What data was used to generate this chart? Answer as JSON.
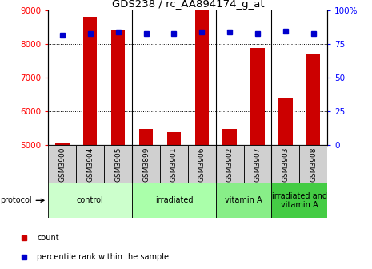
{
  "title": "GDS238 / rc_AA894174_g_at",
  "categories": [
    "GSM3900",
    "GSM3904",
    "GSM3905",
    "GSM3899",
    "GSM3901",
    "GSM3906",
    "GSM3902",
    "GSM3907",
    "GSM3903",
    "GSM3908"
  ],
  "counts": [
    5070,
    8820,
    8430,
    5480,
    5380,
    9000,
    5480,
    7900,
    6420,
    7720
  ],
  "percentiles": [
    82,
    83,
    84,
    83,
    83,
    84,
    84,
    83,
    85,
    83
  ],
  "groups": [
    {
      "label": "control",
      "start": 0,
      "end": 3,
      "color": "#ccffcc"
    },
    {
      "label": "irradiated",
      "start": 3,
      "end": 6,
      "color": "#aaffaa"
    },
    {
      "label": "vitamin A",
      "start": 6,
      "end": 8,
      "color": "#88ee88"
    },
    {
      "label": "irradiated and\nvitamin A",
      "start": 8,
      "end": 10,
      "color": "#44cc44"
    }
  ],
  "ylim_left": [
    5000,
    9000
  ],
  "ylim_right": [
    0,
    100
  ],
  "yticks_left": [
    5000,
    6000,
    7000,
    8000,
    9000
  ],
  "yticks_right": [
    0,
    25,
    50,
    75,
    100
  ],
  "bar_color": "#cc0000",
  "dot_color": "#0000cc",
  "bar_width": 0.5,
  "plot_bg": "#ffffff",
  "cell_bg": "#d0d0d0",
  "group_colors": [
    "#ccffcc",
    "#aaffaa",
    "#88ee88",
    "#44cc44"
  ]
}
